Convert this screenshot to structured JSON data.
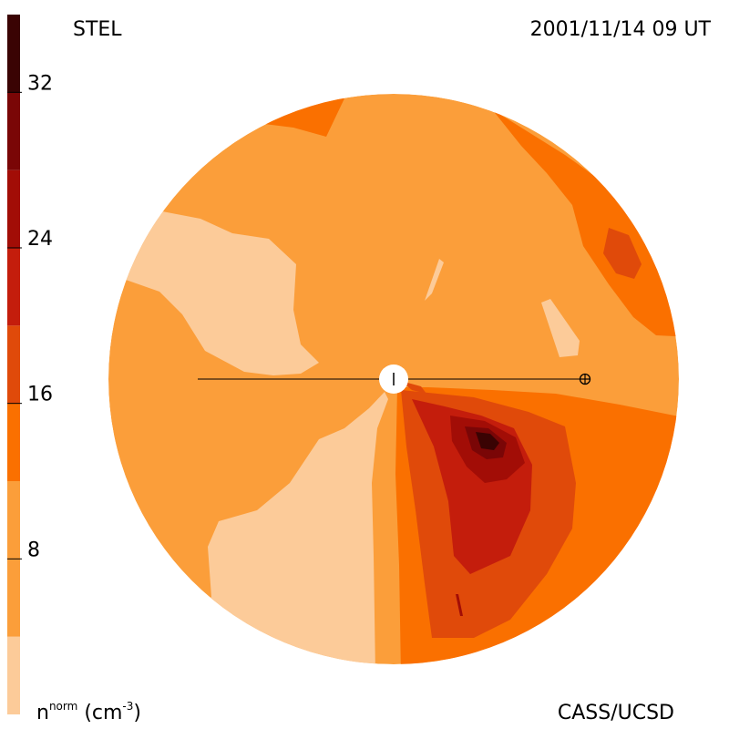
{
  "header": {
    "instrument": "STEL",
    "timestamp": "2001/11/14 09 UT"
  },
  "footer": {
    "credit": "CASS/UCSD",
    "unit_base": "n",
    "unit_sup": "norm",
    "unit_paren_open": "(cm",
    "unit_exp": "-3",
    "unit_paren_close": ")"
  },
  "colorbar": {
    "min": 0,
    "max": 36,
    "tick_labels": [
      "8",
      "16",
      "24",
      "32"
    ],
    "tick_values": [
      8,
      16,
      24,
      32
    ],
    "bands": [
      {
        "from": 0,
        "to": 4,
        "color": "#fccb99"
      },
      {
        "from": 4,
        "to": 12,
        "color": "#fb9e3a"
      },
      {
        "from": 12,
        "to": 16,
        "color": "#fa7000"
      },
      {
        "from": 16,
        "to": 20,
        "color": "#e04a0a"
      },
      {
        "from": 20,
        "to": 24,
        "color": "#c41d0c"
      },
      {
        "from": 24,
        "to": 28,
        "color": "#a20d06"
      },
      {
        "from": 28,
        "to": 32,
        "color": "#7a0606"
      },
      {
        "from": 32,
        "to": 36,
        "color": "#3a0303"
      }
    ]
  },
  "map": {
    "sun_symbol": "sun",
    "earth_symbol": "earth",
    "regions": [
      {
        "name": "background-medium",
        "level": 8,
        "color": "#fb9e3a"
      },
      {
        "name": "low-density-region-northwest",
        "level": 2,
        "color": "#fccb99"
      },
      {
        "name": "low-density-region-south",
        "level": 2,
        "color": "#fccb99"
      },
      {
        "name": "low-density-streak-north",
        "level": 2,
        "color": "#fccb99"
      },
      {
        "name": "low-density-streak-east",
        "level": 2,
        "color": "#fccb99"
      },
      {
        "name": "high-density-region-north",
        "level": 14,
        "color": "#fa7000"
      },
      {
        "name": "high-density-region-northeast",
        "level": 14,
        "color": "#fa7000"
      },
      {
        "name": "high-density-core-northeast",
        "level": 18,
        "color": "#e04a0a"
      },
      {
        "name": "plume-outer",
        "level": 14,
        "color": "#fa7000"
      },
      {
        "name": "plume-mid",
        "level": 18,
        "color": "#e04a0a"
      },
      {
        "name": "plume-inner",
        "level": 22,
        "color": "#c41d0c"
      },
      {
        "name": "plume-core",
        "level": 26,
        "color": "#a20d06"
      },
      {
        "name": "plume-peak-outer",
        "level": 30,
        "color": "#7a0606"
      },
      {
        "name": "plume-peak",
        "level": 34,
        "color": "#3a0303"
      }
    ]
  }
}
